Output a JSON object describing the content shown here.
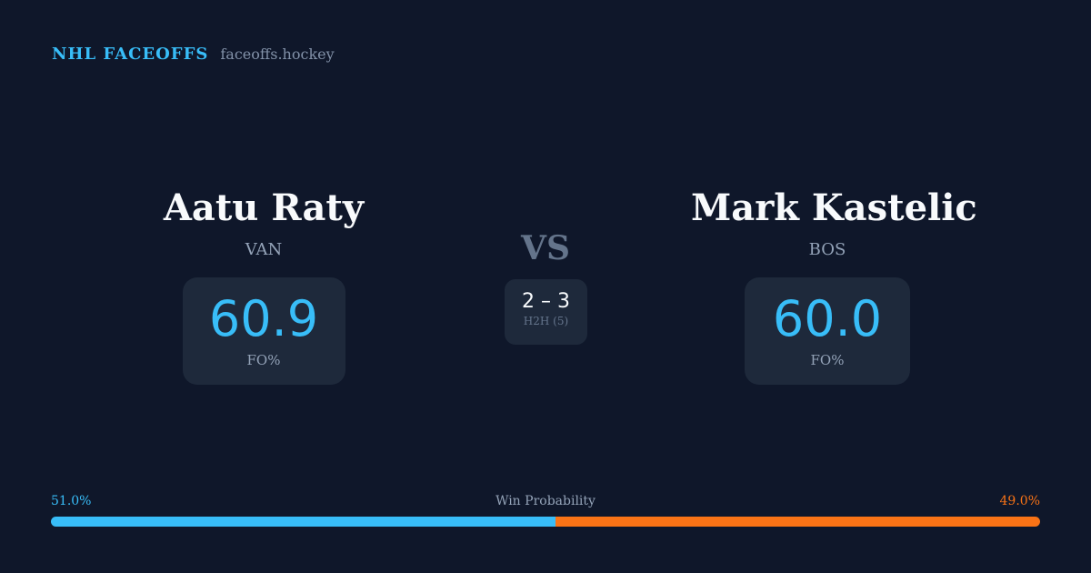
{
  "brand": {
    "title": "NHL FACEOFFS",
    "domain": "faceoffs.hockey"
  },
  "left": {
    "name": "Aatu Raty",
    "team": "VAN",
    "fo_pct": "60.9",
    "fo_label": "FO%"
  },
  "right": {
    "name": "Mark Kastelic",
    "team": "BOS",
    "fo_pct": "60.0",
    "fo_label": "FO%"
  },
  "vs": "VS",
  "h2h": {
    "score": "2 – 3",
    "label": "H2H (5)"
  },
  "probability": {
    "label": "Win Probability",
    "left": "51.0%",
    "right": "49.0%",
    "left_value": 51.0,
    "right_value": 49.0
  },
  "colors": {
    "left": "#38bdf8",
    "right": "#f97316",
    "background": "#0f172a"
  }
}
